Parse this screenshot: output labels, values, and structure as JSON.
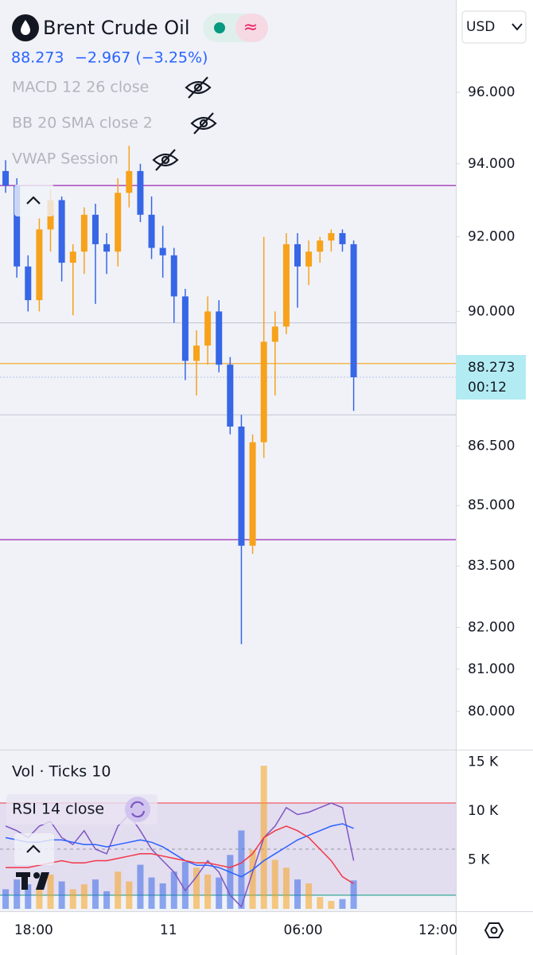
{
  "header": {
    "symbol": "Brent Crude Oil",
    "last_price": 88.273,
    "change": "−2.967 (−3.25%)",
    "currency": "USD",
    "countdown": "00:12",
    "indicators": [
      "MACD 12 26 close",
      "BB 20 SMA close 2",
      "VWAP Session"
    ],
    "volume_label": "Vol · Ticks 10",
    "rsi_label": "RSI 14 close"
  },
  "chart_data": {
    "type": "candlestick",
    "log_scale": true,
    "up_color": "#f7a21b",
    "down_color": "#3766e6",
    "x": [
      16.75,
      17.25,
      17.75,
      18.25,
      18.75,
      19.25,
      19.75,
      20.25,
      20.75,
      21.25,
      21.75,
      22.25,
      22.75,
      23.25,
      23.75,
      24.25,
      24.75,
      25.25,
      25.75,
      26.25,
      26.75,
      27.25,
      27.75,
      28.25,
      28.75,
      29.25,
      29.75,
      30.25,
      30.75,
      31.25,
      31.75,
      32.25
    ],
    "open": [
      93.8,
      93.4,
      91.2,
      90.3,
      92.2,
      93.0,
      91.3,
      91.6,
      92.6,
      91.8,
      91.6,
      93.2,
      93.8,
      92.6,
      91.7,
      91.5,
      90.4,
      88.7,
      89.1,
      90.0,
      88.6,
      87.0,
      84.0,
      86.6,
      89.2,
      89.6,
      91.8,
      91.2,
      91.6,
      91.9,
      92.1,
      91.8
    ],
    "high": [
      94.1,
      93.6,
      91.5,
      92.5,
      93.3,
      93.1,
      91.8,
      92.8,
      92.9,
      92.1,
      93.6,
      94.5,
      94.0,
      93.1,
      92.3,
      91.7,
      90.6,
      89.5,
      90.4,
      90.3,
      88.8,
      87.3,
      86.8,
      92.0,
      90.0,
      92.1,
      92.1,
      91.9,
      92.0,
      92.2,
      92.2,
      91.9
    ],
    "low": [
      93.2,
      90.9,
      90.0,
      90.0,
      91.6,
      90.8,
      89.9,
      91.0,
      90.2,
      91.0,
      91.2,
      92.8,
      92.4,
      91.4,
      90.9,
      89.7,
      88.2,
      87.8,
      88.6,
      88.4,
      86.8,
      81.6,
      83.8,
      86.2,
      87.8,
      89.4,
      90.1,
      90.7,
      91.3,
      91.6,
      91.6,
      87.4
    ],
    "close": [
      93.4,
      91.2,
      90.3,
      92.2,
      93.0,
      91.3,
      91.6,
      92.6,
      91.8,
      91.6,
      93.2,
      93.8,
      92.6,
      91.7,
      91.5,
      90.4,
      88.7,
      89.1,
      90.0,
      88.6,
      87.0,
      84.0,
      86.6,
      89.2,
      89.6,
      91.8,
      91.2,
      91.6,
      91.9,
      92.1,
      91.8,
      88.273
    ],
    "xlim": [
      16.5,
      36.8
    ],
    "xticks": [
      {
        "value": 18,
        "label": "18:00"
      },
      {
        "value": 24,
        "label": "11"
      },
      {
        "value": 30,
        "label": "06:00"
      },
      {
        "value": 36,
        "label": "12:00"
      }
    ],
    "ylim": [
      79.14,
      98.53
    ],
    "yticks": [
      {
        "value": 96,
        "label": "96.000"
      },
      {
        "value": 94,
        "label": "94.000"
      },
      {
        "value": 92,
        "label": "92.000"
      },
      {
        "value": 90,
        "label": "90.000"
      },
      {
        "value": 86.5,
        "label": "86.500"
      },
      {
        "value": 85,
        "label": "85.000"
      },
      {
        "value": 83.5,
        "label": "83.500"
      },
      {
        "value": 82,
        "label": "82.000"
      },
      {
        "value": 81,
        "label": "81.000"
      },
      {
        "value": 80,
        "label": "80.000"
      }
    ],
    "hlines": [
      {
        "value": 93.4,
        "color": "#9c27b0"
      },
      {
        "value": 84.15,
        "color": "#9c27b0"
      },
      {
        "value": 88.63,
        "color": "#f7a21b"
      },
      {
        "value": 89.7,
        "color": "#c9ccd6"
      },
      {
        "value": 87.3,
        "color": "#c9ccd6"
      }
    ],
    "volume": [
      2000,
      3000,
      2500,
      2200,
      3500,
      2800,
      2000,
      2500,
      3000,
      1800,
      3800,
      2800,
      4500,
      3200,
      2600,
      3800,
      4800,
      4200,
      3500,
      3200,
      5500,
      8000,
      6000,
      14600,
      5000,
      4200,
      3000,
      2600,
      1200,
      800,
      1000,
      2900
    ],
    "volume_ylim": [
      0,
      16000
    ],
    "volume_ticks": [
      {
        "value": 15000,
        "label": "15 K"
      },
      {
        "value": 10000,
        "label": "10 K"
      },
      {
        "value": 5000,
        "label": "5 K"
      }
    ],
    "rsi_ylim": [
      24.1,
      92.1
    ],
    "rsi_levels": [
      {
        "value": 70,
        "color": "#f23645"
      },
      {
        "value": 50,
        "color": "#9598a1"
      },
      {
        "value": 30,
        "color": "#089981"
      }
    ],
    "rsi_series": [
      {
        "color": "#7e57c2",
        "values": [
          60,
          58,
          55,
          60,
          62,
          55,
          52,
          58,
          50,
          48,
          60,
          65,
          58,
          50,
          45,
          40,
          32,
          38,
          45,
          40,
          30,
          25,
          40,
          55,
          60,
          68,
          65,
          66,
          68,
          70,
          68,
          45
        ]
      },
      {
        "color": "#2962ff",
        "values": [
          55,
          54,
          53,
          53,
          54,
          54,
          53,
          52,
          52,
          51,
          52,
          53,
          54,
          53,
          51,
          48,
          45,
          43,
          43,
          42,
          40,
          38,
          41,
          45,
          48,
          51,
          54,
          56,
          58,
          60,
          61,
          59
        ]
      },
      {
        "color": "#f23645",
        "values": [
          42,
          42,
          42,
          43,
          44,
          45,
          44,
          44,
          45,
          45,
          46,
          47,
          48,
          48,
          47,
          46,
          45,
          44,
          44,
          43,
          42,
          44,
          48,
          55,
          58,
          60,
          58,
          55,
          50,
          45,
          38,
          35
        ]
      }
    ]
  }
}
